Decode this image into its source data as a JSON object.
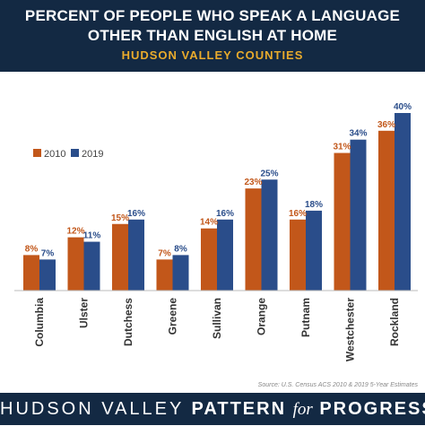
{
  "header": {
    "title_line1": "PERCENT OF PEOPLE WHO SPEAK A LANGUAGE",
    "title_line2": "OTHER THAN ENGLISH AT HOME",
    "subtitle": "HUDSON VALLEY COUNTIES"
  },
  "colors": {
    "header_bg": "#132943",
    "accent_gold": "#e9ab2c",
    "series_2010": "#c2571a",
    "series_2019": "#2a4d8a"
  },
  "chart_data": {
    "type": "bar",
    "categories": [
      "Columbia",
      "Ulster",
      "Dutchess",
      "Greene",
      "Sullivan",
      "Orange",
      "Putnam",
      "Westchester",
      "Rockland"
    ],
    "series": [
      {
        "name": "2010",
        "values": [
          8,
          12,
          15,
          7,
          14,
          23,
          16,
          31,
          36
        ],
        "labels": [
          "8%",
          "12%",
          "15%",
          "7%",
          "14%",
          "23%",
          "16%",
          "31%",
          "36%"
        ],
        "color": "#c2571a"
      },
      {
        "name": "2019",
        "values": [
          7,
          11,
          16,
          8,
          16,
          25,
          18,
          34,
          40
        ],
        "labels": [
          "7%",
          "11%",
          "16%",
          "8%",
          "16%",
          "25%",
          "18%",
          "34%",
          "40%"
        ],
        "color": "#2a4d8a"
      }
    ],
    "ylim": [
      0,
      40
    ],
    "grid": false,
    "legend_position": "top-left",
    "source": "Source: U.S. Census ACS 2010 & 2019 5-Year Estimates"
  },
  "footer": {
    "part1": "HUDSON VALLEY ",
    "part2": "PATTERN ",
    "part3": "for",
    "part4": " PROGRESS"
  }
}
